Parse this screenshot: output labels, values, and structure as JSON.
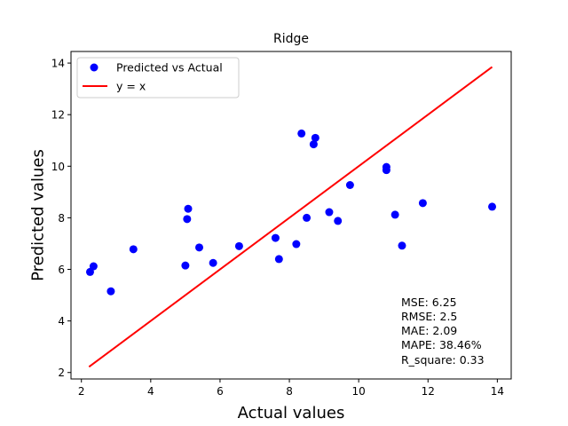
{
  "chart_data": {
    "type": "scatter",
    "title": "Ridge",
    "xlabel": "Actual values",
    "ylabel": "Predicted values",
    "xlim": [
      1.7,
      14.4
    ],
    "ylim": [
      1.75,
      14.45
    ],
    "xticks": [
      2,
      4,
      6,
      8,
      10,
      12,
      14
    ],
    "yticks": [
      2,
      4,
      6,
      8,
      10,
      12,
      14
    ],
    "grid": false,
    "legend_position": "top-left",
    "series": [
      {
        "name": "Predicted vs Actual",
        "kind": "scatter",
        "color": "#0000ff",
        "points": [
          [
            2.25,
            5.9
          ],
          [
            2.35,
            6.12
          ],
          [
            2.85,
            5.15
          ],
          [
            3.5,
            6.78
          ],
          [
            5.0,
            6.15
          ],
          [
            5.05,
            7.95
          ],
          [
            5.08,
            8.35
          ],
          [
            5.4,
            6.85
          ],
          [
            5.8,
            6.25
          ],
          [
            6.55,
            6.9
          ],
          [
            7.6,
            7.22
          ],
          [
            7.7,
            6.4
          ],
          [
            8.2,
            6.98
          ],
          [
            8.35,
            11.27
          ],
          [
            8.5,
            8.0
          ],
          [
            8.7,
            10.85
          ],
          [
            8.75,
            11.1
          ],
          [
            9.15,
            8.22
          ],
          [
            9.4,
            7.88
          ],
          [
            9.75,
            9.27
          ],
          [
            10.8,
            9.85
          ],
          [
            10.8,
            9.97
          ],
          [
            11.05,
            8.12
          ],
          [
            11.25,
            6.92
          ],
          [
            11.85,
            8.57
          ],
          [
            13.85,
            8.43
          ]
        ]
      },
      {
        "name": "y = x",
        "kind": "line",
        "color": "#ff0000",
        "points": [
          [
            2.22,
            2.22
          ],
          [
            13.85,
            13.85
          ]
        ]
      }
    ],
    "metrics": [
      "MSE: 6.25",
      "RMSE: 2.5",
      "MAE: 2.09",
      "MAPE: 38.46%",
      "R_square: 0.33"
    ]
  }
}
